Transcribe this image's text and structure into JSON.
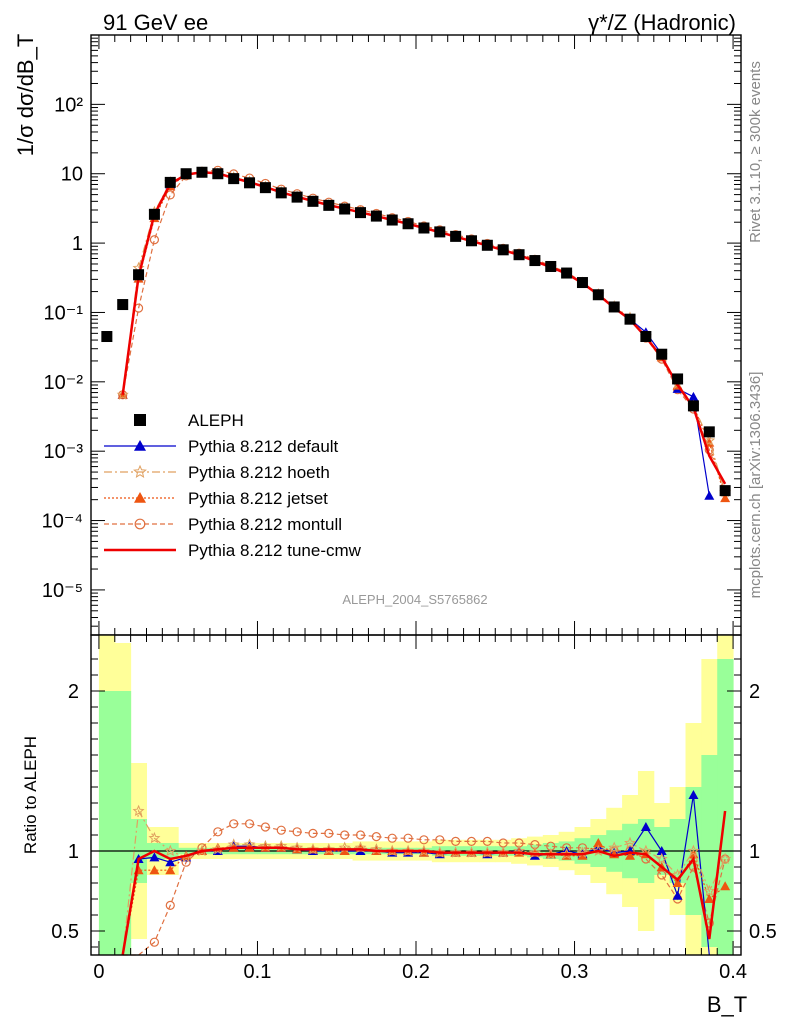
{
  "header": {
    "left": "91 GeV ee",
    "right": "γ*/Z (Hadronic)"
  },
  "side": {
    "rivet": "Rivet 3.1.10, ≥ 300k events",
    "mcplots": "mcplots.cern.ch [arXiv:1306.3436]"
  },
  "watermark": "ALEPH_2004_S5765862",
  "axes": {
    "ylabel_main": "1/σ  dσ/dB_T",
    "ylabel_ratio": "Ratio to ALEPH",
    "xlabel": "B_T",
    "x_ticks": [
      "0",
      "0.1",
      "0.2",
      "0.3",
      "0.4"
    ],
    "main_y_ticks": [
      "10⁻⁵",
      "10⁻⁴",
      "10⁻³",
      "10⁻²",
      "10⁻¹",
      "1",
      "10",
      "10²"
    ],
    "ratio_y_ticks": [
      "0.5",
      "1",
      "2"
    ]
  },
  "legend": {
    "items": [
      {
        "label": "ALEPH",
        "color": "#000000",
        "marker": "square",
        "dash": ""
      },
      {
        "label": "Pythia 8.212 default",
        "color": "#0000cc",
        "marker": "triangle",
        "dash": ""
      },
      {
        "label": "Pythia 8.212 hoeth",
        "color": "#e0a060",
        "marker": "star",
        "dash": "8,3,2,3"
      },
      {
        "label": "Pythia 8.212 jetset",
        "color": "#ee5511",
        "marker": "triangle",
        "dash": "2,2"
      },
      {
        "label": "Pythia 8.212 montull",
        "color": "#e07040",
        "marker": "circle",
        "dash": "5,3"
      },
      {
        "label": "Pythia 8.212 tune-cmw",
        "color": "#ee0000",
        "marker": "none",
        "dash": ""
      }
    ]
  },
  "chart_data": {
    "type": "line",
    "title": "91 GeV ee — γ*/Z (Hadronic)",
    "xlabel": "B_T",
    "ylabel": "1/σ dσ/dB_T",
    "xlim": [
      -0.005,
      0.405
    ],
    "ylim_main_log10": [
      -5.65,
      3.0
    ],
    "ylim_ratio": [
      0.35,
      2.35
    ],
    "x": [
      0.005,
      0.015,
      0.025,
      0.035,
      0.045,
      0.055,
      0.065,
      0.075,
      0.085,
      0.095,
      0.105,
      0.115,
      0.125,
      0.135,
      0.145,
      0.155,
      0.165,
      0.175,
      0.185,
      0.195,
      0.205,
      0.215,
      0.225,
      0.235,
      0.245,
      0.255,
      0.265,
      0.275,
      0.285,
      0.295,
      0.305,
      0.315,
      0.325,
      0.335,
      0.345,
      0.355,
      0.365,
      0.375,
      0.385,
      0.395
    ],
    "data": [
      0.045,
      0.13,
      0.35,
      2.6,
      7.5,
      10.0,
      10.5,
      10.0,
      8.5,
      7.4,
      6.3,
      5.3,
      4.6,
      4.0,
      3.5,
      3.1,
      2.75,
      2.45,
      2.15,
      1.9,
      1.65,
      1.45,
      1.25,
      1.08,
      0.93,
      0.8,
      0.68,
      0.56,
      0.46,
      0.37,
      0.27,
      0.18,
      0.12,
      0.08,
      0.045,
      0.025,
      0.011,
      0.0045,
      0.0019,
      0.00027
    ],
    "series": [
      {
        "name": "Pythia 8.212 default",
        "ratio": [
          null,
          0.05,
          0.95,
          0.96,
          0.93,
          0.96,
          1.0,
          1.0,
          1.03,
          1.03,
          1.02,
          1.02,
          1.01,
          1.0,
          1.0,
          1.0,
          1.0,
          1.0,
          0.99,
          0.99,
          0.99,
          0.98,
          0.99,
          0.99,
          0.98,
          0.99,
          1.0,
          0.97,
          0.98,
          1.0,
          0.98,
          1.02,
          0.99,
          1.0,
          1.15,
          1.0,
          0.72,
          1.35,
          0.12,
          null
        ]
      },
      {
        "name": "Pythia 8.212 hoeth",
        "ratio": [
          null,
          0.05,
          1.25,
          1.08,
          1.0,
          0.96,
          1.0,
          1.01,
          1.04,
          1.04,
          1.03,
          1.03,
          1.02,
          1.01,
          1.01,
          1.02,
          1.02,
          1.01,
          1.0,
          1.0,
          1.0,
          0.99,
          0.99,
          0.99,
          0.99,
          0.99,
          1.0,
          0.99,
          0.98,
          0.98,
          0.99,
          1.0,
          1.02,
          1.05,
          1.0,
          0.95,
          0.85,
          1.0,
          0.75,
          0.95
        ]
      },
      {
        "name": "Pythia 8.212 jetset",
        "ratio": [
          null,
          0.05,
          0.88,
          0.88,
          0.88,
          0.97,
          1.0,
          1.02,
          1.02,
          1.02,
          1.02,
          1.02,
          1.01,
          1.01,
          1.0,
          1.0,
          1.02,
          1.0,
          1.0,
          1.0,
          0.99,
          0.99,
          0.99,
          0.99,
          0.99,
          0.99,
          0.99,
          0.99,
          0.98,
          0.97,
          0.97,
          1.05,
          0.98,
          0.97,
          0.98,
          0.9,
          0.8,
          0.98,
          0.7,
          0.78
        ]
      },
      {
        "name": "Pythia 8.212 montull",
        "ratio": [
          null,
          0.05,
          0.33,
          0.43,
          0.66,
          0.93,
          1.02,
          1.12,
          1.17,
          1.17,
          1.15,
          1.13,
          1.12,
          1.11,
          1.11,
          1.1,
          1.1,
          1.09,
          1.08,
          1.08,
          1.07,
          1.07,
          1.06,
          1.06,
          1.06,
          1.05,
          1.05,
          1.04,
          1.03,
          1.02,
          1.02,
          1.01,
          1.0,
          1.0,
          0.95,
          0.85,
          0.7,
          0.9,
          0.55,
          0.95
        ]
      },
      {
        "name": "Pythia 8.212 tune-cmw",
        "ratio": [
          null,
          0.05,
          0.95,
          1.0,
          0.95,
          0.97,
          1.0,
          1.01,
          1.02,
          1.02,
          1.02,
          1.02,
          1.01,
          1.01,
          1.01,
          1.01,
          1.01,
          1.0,
          1.0,
          1.0,
          1.0,
          0.99,
          0.99,
          0.99,
          0.99,
          0.99,
          0.99,
          0.98,
          0.98,
          0.98,
          0.98,
          1.0,
          0.97,
          0.99,
          0.98,
          0.9,
          0.82,
          0.95,
          0.45,
          1.25
        ]
      }
    ],
    "uncertainty_band_inner": [
      2.0,
      2.0,
      1.2,
      1.05,
      1.05,
      1.02,
      1.02,
      1.02,
      1.02,
      1.02,
      1.02,
      1.02,
      1.02,
      1.02,
      1.02,
      1.02,
      1.02,
      1.02,
      1.02,
      1.02,
      1.02,
      1.03,
      1.03,
      1.03,
      1.03,
      1.03,
      1.03,
      1.04,
      1.05,
      1.06,
      1.08,
      1.1,
      1.13,
      1.17,
      1.2,
      1.15,
      1.2,
      1.4,
      1.6,
      2.2
    ],
    "uncertainty_band_outer": [
      2.35,
      2.3,
      1.55,
      1.15,
      1.15,
      1.05,
      1.05,
      1.05,
      1.05,
      1.05,
      1.05,
      1.05,
      1.05,
      1.05,
      1.05,
      1.05,
      1.06,
      1.06,
      1.06,
      1.06,
      1.06,
      1.07,
      1.07,
      1.07,
      1.07,
      1.07,
      1.08,
      1.09,
      1.1,
      1.12,
      1.15,
      1.2,
      1.27,
      1.35,
      1.5,
      1.3,
      1.4,
      1.8,
      2.2,
      2.35
    ],
    "legend_position": "lower-left",
    "grid": false
  }
}
